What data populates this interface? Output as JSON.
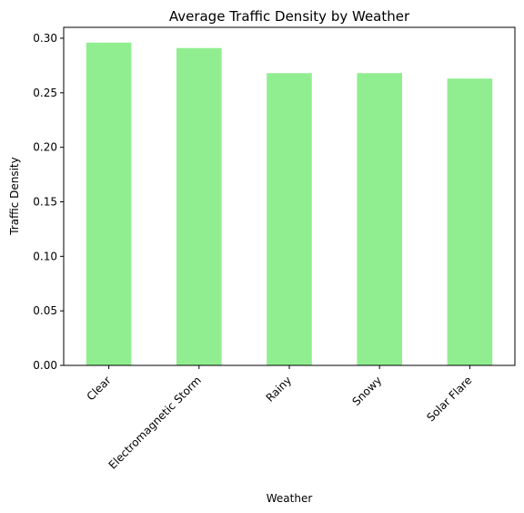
{
  "chart_data": {
    "type": "bar",
    "title": "Average Traffic Density by Weather",
    "xlabel": "Weather",
    "ylabel": "Traffic Density",
    "categories": [
      "Clear",
      "Electromagnetic Storm",
      "Rainy",
      "Snowy",
      "Solar Flare"
    ],
    "values": [
      0.296,
      0.291,
      0.268,
      0.268,
      0.263
    ],
    "ylim": [
      0,
      0.31
    ],
    "yticks": [
      "0.00",
      "0.05",
      "0.10",
      "0.15",
      "0.20",
      "0.25",
      "0.30"
    ],
    "grid": false,
    "bar_color": "#90ee90"
  }
}
